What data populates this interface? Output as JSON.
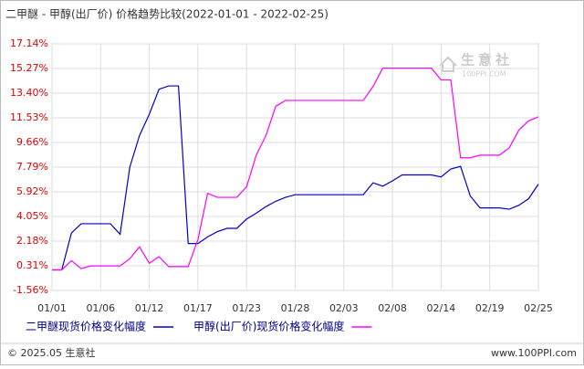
{
  "chart_data": {
    "type": "line",
    "title": "二甲醚 - 甲醇(出厂价) 价格趋势比较(2022-01-01 - 2022-02-25)",
    "watermark": [
      "生意社",
      "100PPI.COM"
    ],
    "footer_left": "© 2025.05 生意社",
    "footer_right": "www.100PPI.com",
    "categories": [
      "01/01",
      null,
      null,
      null,
      null,
      "01/06",
      null,
      null,
      null,
      null,
      "01/12",
      null,
      null,
      null,
      null,
      "01/17",
      null,
      null,
      null,
      null,
      "01/23",
      null,
      null,
      null,
      null,
      "01/28",
      null,
      null,
      null,
      null,
      "02/03",
      null,
      null,
      null,
      null,
      "02/08",
      null,
      null,
      null,
      null,
      "02/14",
      null,
      null,
      null,
      null,
      "02/19",
      null,
      null,
      null,
      null,
      "02/25"
    ],
    "series": [
      {
        "name": "二甲醚现货价格变化幅度",
        "color": "#0000cc",
        "values": [
          0,
          0,
          2.8,
          3.5,
          3.5,
          3.5,
          3.5,
          2.7,
          7.8,
          10.2,
          11.8,
          13.7,
          13.95,
          13.95,
          2.0,
          2.0,
          2.5,
          2.9,
          3.15,
          3.15,
          3.85,
          4.3,
          4.8,
          5.2,
          5.5,
          5.7,
          5.7,
          5.7,
          5.7,
          5.7,
          5.7,
          5.7,
          5.7,
          6.6,
          6.35,
          6.75,
          7.2,
          7.2,
          7.2,
          7.2,
          7.05,
          7.65,
          7.85,
          5.6,
          4.7,
          4.7,
          4.7,
          4.6,
          4.9,
          5.4,
          6.5
        ]
      },
      {
        "name": "甲醇(出厂价)现货价格变化幅度",
        "color": "#ff00ff",
        "values": [
          0,
          0,
          0.7,
          0.1,
          0.3,
          0.3,
          0.3,
          0.3,
          0.85,
          1.75,
          0.5,
          1.0,
          0.25,
          0.25,
          0.25,
          2.3,
          5.8,
          5.5,
          5.5,
          5.5,
          6.3,
          8.7,
          10.2,
          12.4,
          12.85,
          12.85,
          12.85,
          12.85,
          12.85,
          12.85,
          12.85,
          12.85,
          12.85,
          13.9,
          15.3,
          15.3,
          15.3,
          15.3,
          15.3,
          15.3,
          14.4,
          14.4,
          8.5,
          8.5,
          8.7,
          8.7,
          8.7,
          9.25,
          10.6,
          11.3,
          11.6
        ]
      }
    ],
    "ylim": [
      -1.56,
      17.14
    ],
    "yticks": [
      {
        "value": -1.56,
        "label": "-1.56%"
      },
      {
        "value": 0.31,
        "label": "0.31%"
      },
      {
        "value": 2.18,
        "label": "2.18%"
      },
      {
        "value": 4.05,
        "label": "4.05%"
      },
      {
        "value": 5.92,
        "label": "5.92%"
      },
      {
        "value": 7.79,
        "label": "7.79%"
      },
      {
        "value": 9.66,
        "label": "9.66%"
      },
      {
        "value": 11.53,
        "label": "11.53%"
      },
      {
        "value": 13.4,
        "label": "13.40%"
      },
      {
        "value": 15.27,
        "label": "15.27%"
      },
      {
        "value": 17.14,
        "label": "17.14%"
      }
    ],
    "grid": true
  }
}
